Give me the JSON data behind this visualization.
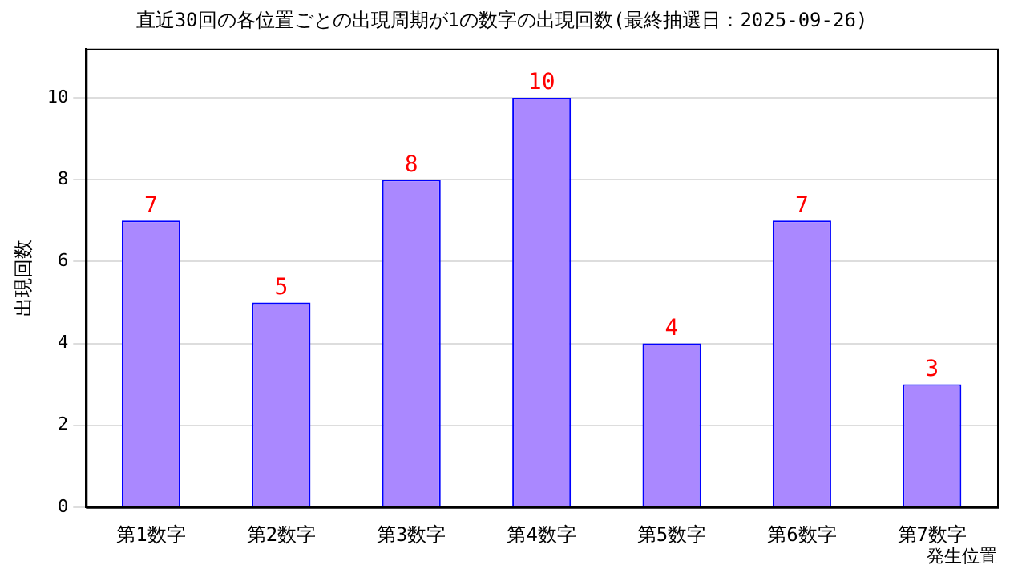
{
  "chart_data": {
    "type": "bar",
    "title": "直近30回の各位置ごとの出現周期が1の数字の出現回数(最終抽選日：2025-09-26)",
    "xlabel": "発生位置",
    "ylabel": "出現回数",
    "categories": [
      "第1数字",
      "第2数字",
      "第3数字",
      "第4数字",
      "第5数字",
      "第6数字",
      "第7数字"
    ],
    "values": [
      7,
      5,
      8,
      10,
      4,
      7,
      3
    ],
    "color": "#aa88ff",
    "ylim": [
      0,
      11.2
    ],
    "yticks": [
      0,
      2,
      4,
      6,
      8,
      10
    ],
    "grid": "y",
    "data_labels": true,
    "legend": false
  }
}
